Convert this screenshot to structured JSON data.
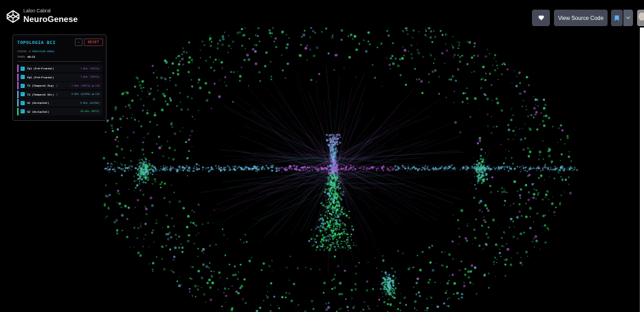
{
  "header": {
    "author": "Lalon Cabral",
    "title": "NeuroGenese",
    "view_source_label": "View Source Code"
  },
  "icons": {
    "logo": "codepen-cube-icon",
    "heart": "heart-icon",
    "bookmark": "bookmark-icon",
    "dropdown": "chevron-down-icon"
  },
  "colors": {
    "accent": "#27c3e0",
    "theta": "#b45ad6",
    "alpha": "#5fb4d8",
    "beta": "#2fd66a",
    "reset": "#e05353"
  },
  "panel": {
    "title": "TOPOLOGIA BCI",
    "minus_label": "-",
    "reset_label": "RESET",
    "status_label": "STATUS:",
    "status_value": "A PROCESSAR ONDAS",
    "time_label": "TEMPO:",
    "time_value": "00:15",
    "channels": [
      {
        "label": "Fp1 (Pré-Frontal)",
        "note": "",
        "value": "7.0Hz (THETA)",
        "color": "#b45ad6"
      },
      {
        "label": "Fp2 (Pré-Frontal)",
        "note": "",
        "value": "7.0Hz (THETA)",
        "color": "#b45ad6"
      },
      {
        "label": "T3 (Temporal Esq)",
        "note": "♫",
        "value": "7.0Hz (THETA) ◉ 135",
        "color": "#b45ad6"
      },
      {
        "label": "T4 (Temporal Dir)",
        "note": "♫",
        "value": "9.0Hz (ALPHA) ◉ 135",
        "color": "#5fb4d8"
      },
      {
        "label": "O1 (Occipital)",
        "note": "",
        "value": "9.0Hz (ALPHA)",
        "color": "#5fb4d8"
      },
      {
        "label": "O2 (Occipital)",
        "note": "",
        "value": "20.0Hz (BETA)",
        "color": "#2fd66a"
      }
    ]
  }
}
